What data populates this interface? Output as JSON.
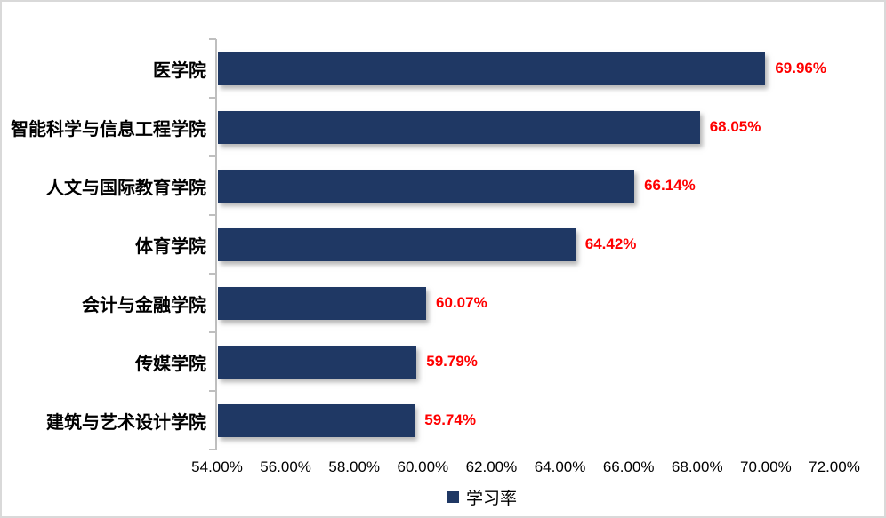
{
  "chart_data": {
    "type": "bar",
    "orientation": "horizontal",
    "title": "",
    "categories": [
      "医学院",
      "智能科学与信息工程学院",
      "人文与国际教育学院",
      "体育学院",
      "会计与金融学院",
      "传媒学院",
      "建筑与艺术设计学院"
    ],
    "series": [
      {
        "name": "学习率",
        "values": [
          69.96,
          68.05,
          66.14,
          64.42,
          60.07,
          59.79,
          59.74
        ]
      }
    ],
    "data_labels": [
      "69.96%",
      "68.05%",
      "66.14%",
      "64.42%",
      "60.07%",
      "59.79%",
      "59.74%"
    ],
    "xlim": [
      54,
      72
    ],
    "x_tick_step": 2,
    "x_tick_labels": [
      "54.00%",
      "56.00%",
      "58.00%",
      "60.00%",
      "62.00%",
      "64.00%",
      "66.00%",
      "68.00%",
      "70.00%",
      "72.00%"
    ],
    "grid": false,
    "legend": {
      "position": "bottom",
      "items": [
        {
          "label": "学习率",
          "color": "#1f3864"
        }
      ]
    },
    "colors": {
      "bar": "#1f3864",
      "data_label": "#ff0000",
      "axis": "#bfbfbf",
      "text": "#000000",
      "chart_border": "#d9d9d9"
    }
  }
}
